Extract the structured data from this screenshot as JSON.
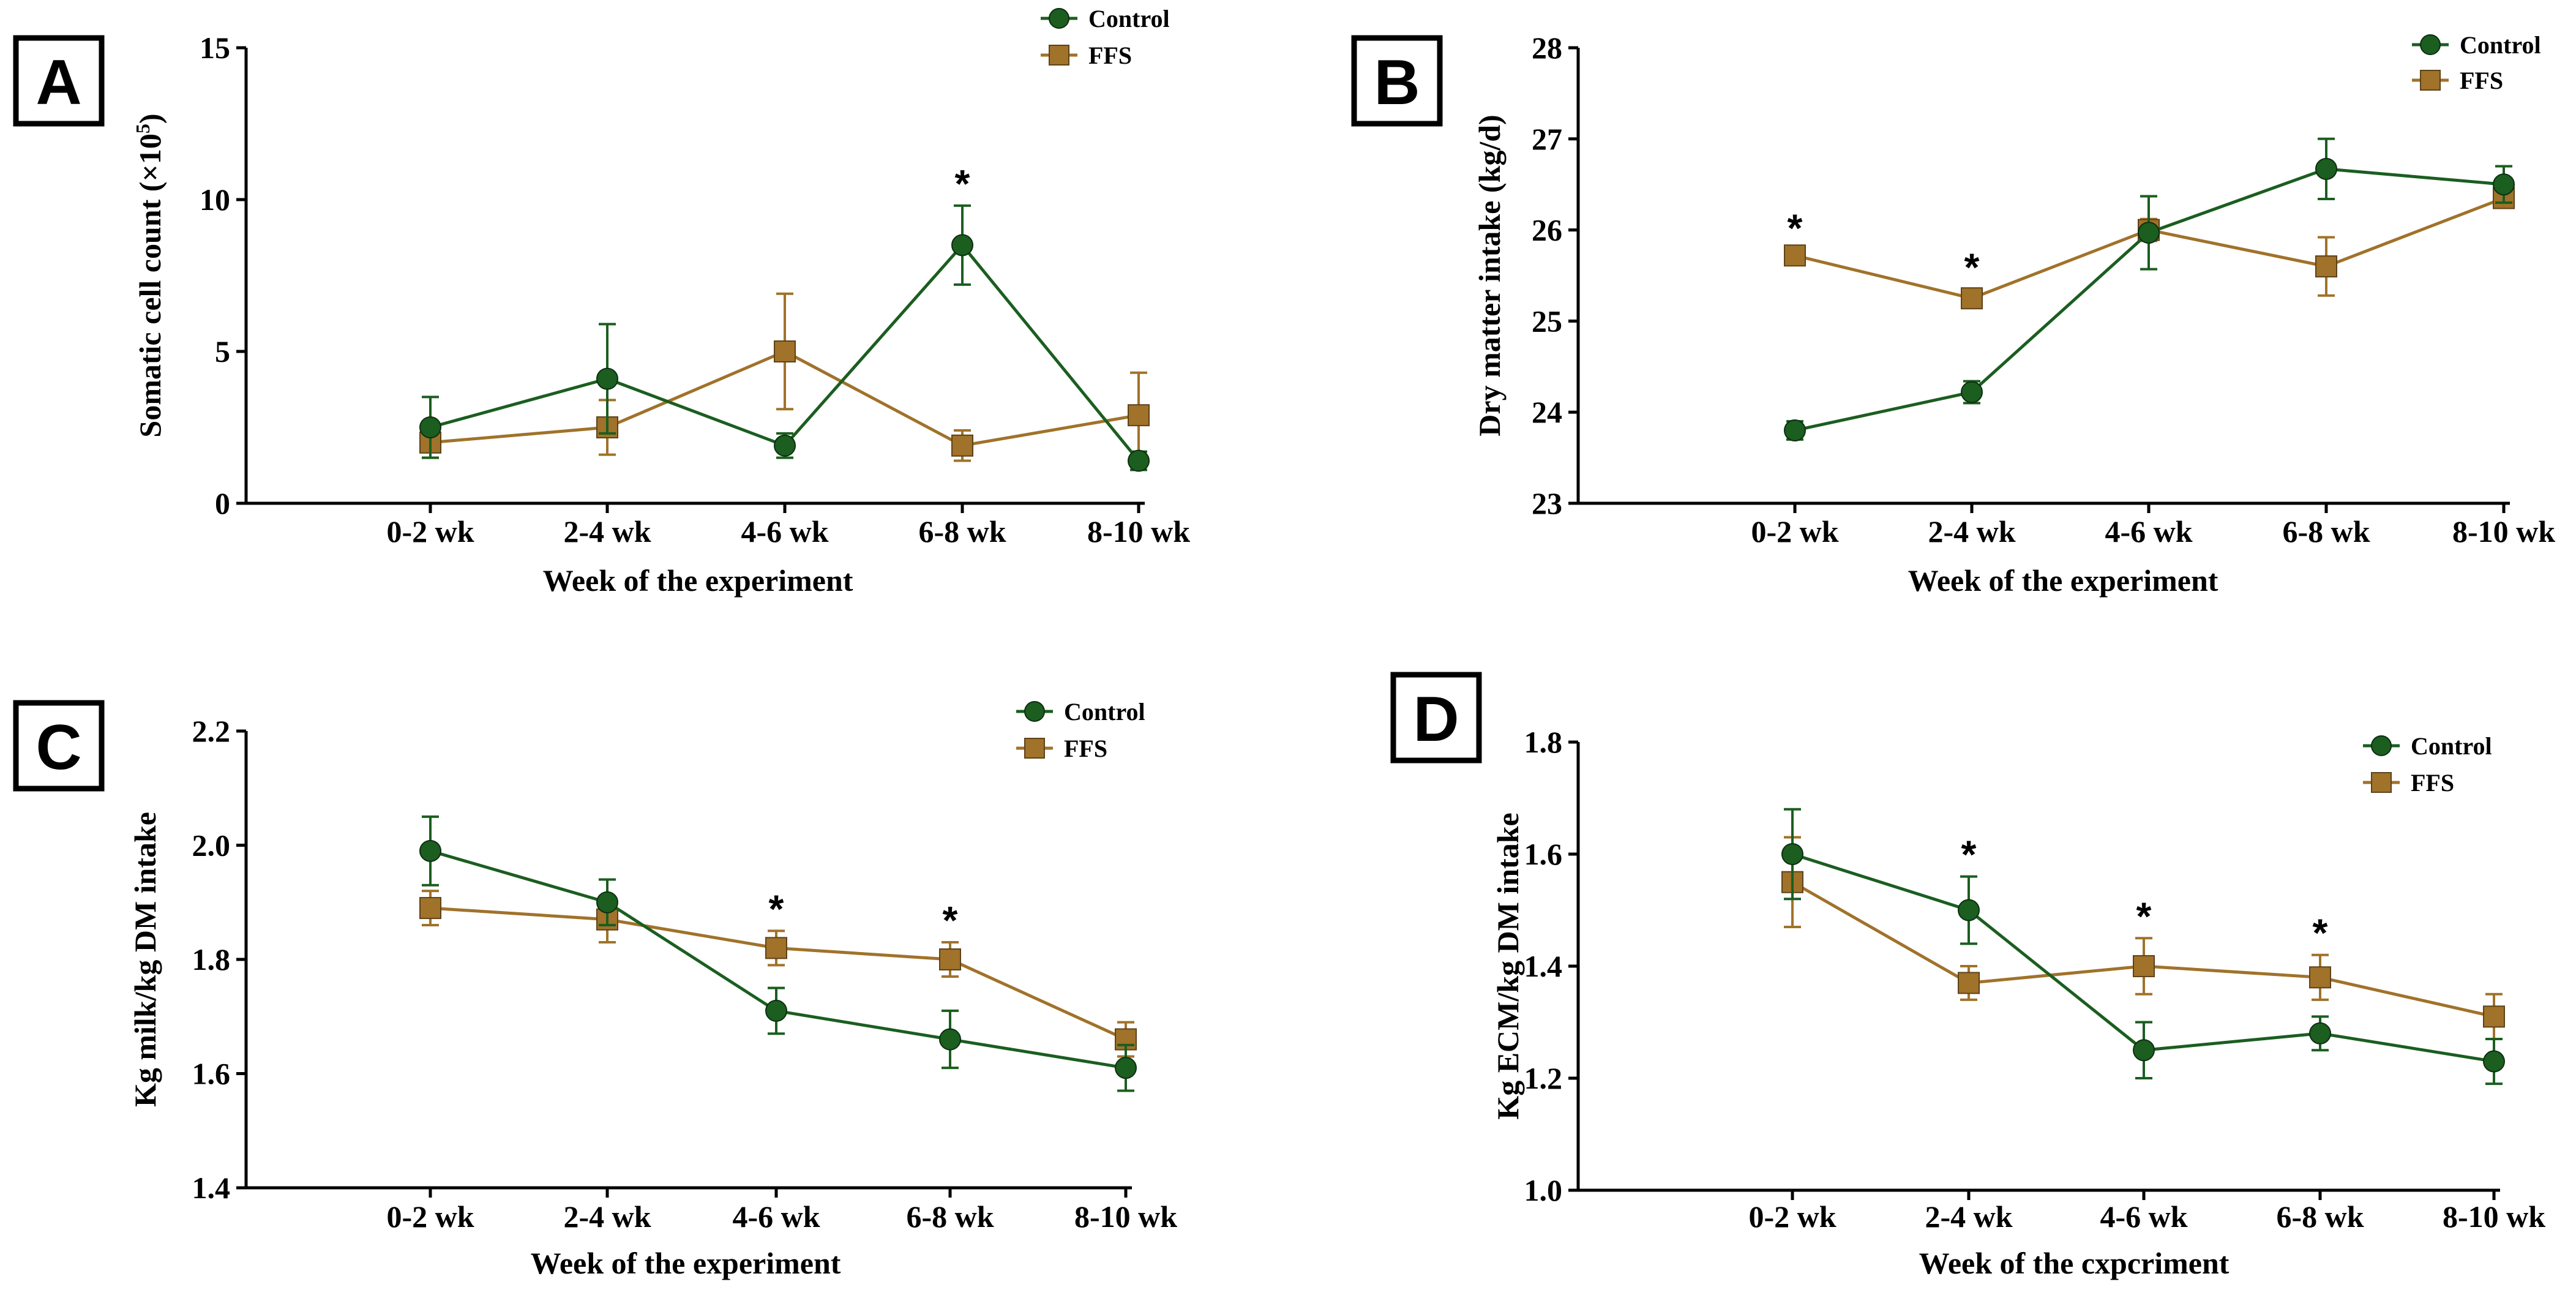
{
  "chart_data": [
    {
      "panel": "A",
      "type": "line",
      "categories": [
        "0-2 wk",
        "2-4 wk",
        "4-6 wk",
        "6-8 wk",
        "8-10 wk"
      ],
      "xlabel": "Week of the experiment",
      "ylabel_main": "Somatic cell count (×10",
      "ylabel_sup": "5",
      "ylabel_end": ")",
      "ylim": [
        0,
        15
      ],
      "yticks": [
        0,
        5,
        10,
        15
      ],
      "ytick_labels": [
        "0",
        "5",
        "10",
        "15"
      ],
      "legend": [
        "Control",
        "FFS"
      ],
      "series": [
        {
          "name": "Control",
          "color": "#1b5e20",
          "marker": "circle",
          "values": [
            2.5,
            4.1,
            1.9,
            8.5,
            1.4
          ],
          "errors": [
            1.0,
            1.8,
            0.4,
            1.3,
            0.3
          ]
        },
        {
          "name": "FFS",
          "color": "#a0722a",
          "marker": "square",
          "values": [
            2.0,
            2.5,
            5.0,
            1.9,
            2.9
          ],
          "errors": [
            0.5,
            0.9,
            1.9,
            0.5,
            1.4
          ]
        }
      ],
      "significance": [
        {
          "category_index": 3,
          "label": "*"
        }
      ]
    },
    {
      "panel": "B",
      "type": "line",
      "categories": [
        "0-2 wk",
        "2-4 wk",
        "4-6 wk",
        "6-8 wk",
        "8-10 wk"
      ],
      "xlabel": "Week of the experiment",
      "ylabel_main": "Dry matter intake (kg/d)",
      "ylim": [
        23,
        28
      ],
      "yticks": [
        23,
        24,
        25,
        26,
        27,
        28
      ],
      "ytick_labels": [
        "23",
        "24",
        "25",
        "26",
        "27",
        "28"
      ],
      "legend": [
        "Control",
        "FFS"
      ],
      "series": [
        {
          "name": "Control",
          "color": "#1b5e20",
          "marker": "circle",
          "values": [
            23.8,
            24.22,
            25.97,
            26.67,
            26.5
          ],
          "errors": [
            0.1,
            0.12,
            0.4,
            0.33,
            0.2
          ]
        },
        {
          "name": "FFS",
          "color": "#a0722a",
          "marker": "square",
          "values": [
            25.72,
            25.25,
            26.0,
            25.6,
            26.35
          ],
          "errors": [
            0.06,
            0.1,
            0.12,
            0.32,
            0.1
          ]
        }
      ],
      "significance": [
        {
          "category_index": 0,
          "label": "*"
        },
        {
          "category_index": 1,
          "label": "*"
        }
      ]
    },
    {
      "panel": "C",
      "type": "line",
      "categories": [
        "0-2 wk",
        "2-4 wk",
        "4-6 wk",
        "6-8 wk",
        "8-10 wk"
      ],
      "xlabel": "Week of the experiment",
      "ylabel_main": "Kg milk/kg DM intake",
      "ylim": [
        1.4,
        2.2
      ],
      "yticks": [
        1.4,
        1.6,
        1.8,
        2.0,
        2.2
      ],
      "ytick_labels": [
        "1.4",
        "1.6",
        "1.8",
        "2.0",
        "2.2"
      ],
      "legend": [
        "Control",
        "FFS"
      ],
      "series": [
        {
          "name": "Control",
          "color": "#1b5e20",
          "marker": "circle",
          "values": [
            1.99,
            1.9,
            1.71,
            1.66,
            1.61
          ],
          "errors": [
            0.06,
            0.04,
            0.04,
            0.05,
            0.04
          ]
        },
        {
          "name": "FFS",
          "color": "#a0722a",
          "marker": "square",
          "values": [
            1.89,
            1.87,
            1.82,
            1.8,
            1.66
          ],
          "errors": [
            0.03,
            0.04,
            0.03,
            0.03,
            0.03
          ]
        }
      ],
      "significance": [
        {
          "category_index": 2,
          "label": "*"
        },
        {
          "category_index": 3,
          "label": "*"
        }
      ]
    },
    {
      "panel": "D",
      "type": "line",
      "categories": [
        "0-2 wk",
        "2-4 wk",
        "4-6 wk",
        "6-8 wk",
        "8-10 wk"
      ],
      "xlabel": "Week of the cxpcriment",
      "ylabel_main": "Kg ECM/kg DM intake",
      "ylim": [
        1.0,
        1.8
      ],
      "yticks": [
        1.0,
        1.2,
        1.4,
        1.6,
        1.8
      ],
      "ytick_labels": [
        "1.0",
        "1.2",
        "1.4",
        "1.6",
        "1.8"
      ],
      "legend": [
        "Control",
        "FFS"
      ],
      "series": [
        {
          "name": "Control",
          "color": "#1b5e20",
          "marker": "circle",
          "values": [
            1.6,
            1.5,
            1.25,
            1.28,
            1.23
          ],
          "errors": [
            0.08,
            0.06,
            0.05,
            0.03,
            0.04
          ]
        },
        {
          "name": "FFS",
          "color": "#a0722a",
          "marker": "square",
          "values": [
            1.55,
            1.37,
            1.4,
            1.38,
            1.31
          ],
          "errors": [
            0.08,
            0.03,
            0.05,
            0.04,
            0.04
          ]
        }
      ],
      "significance": [
        {
          "category_index": 1,
          "label": "*"
        },
        {
          "category_index": 2,
          "label": "*"
        },
        {
          "category_index": 3,
          "label": "*"
        }
      ]
    }
  ]
}
